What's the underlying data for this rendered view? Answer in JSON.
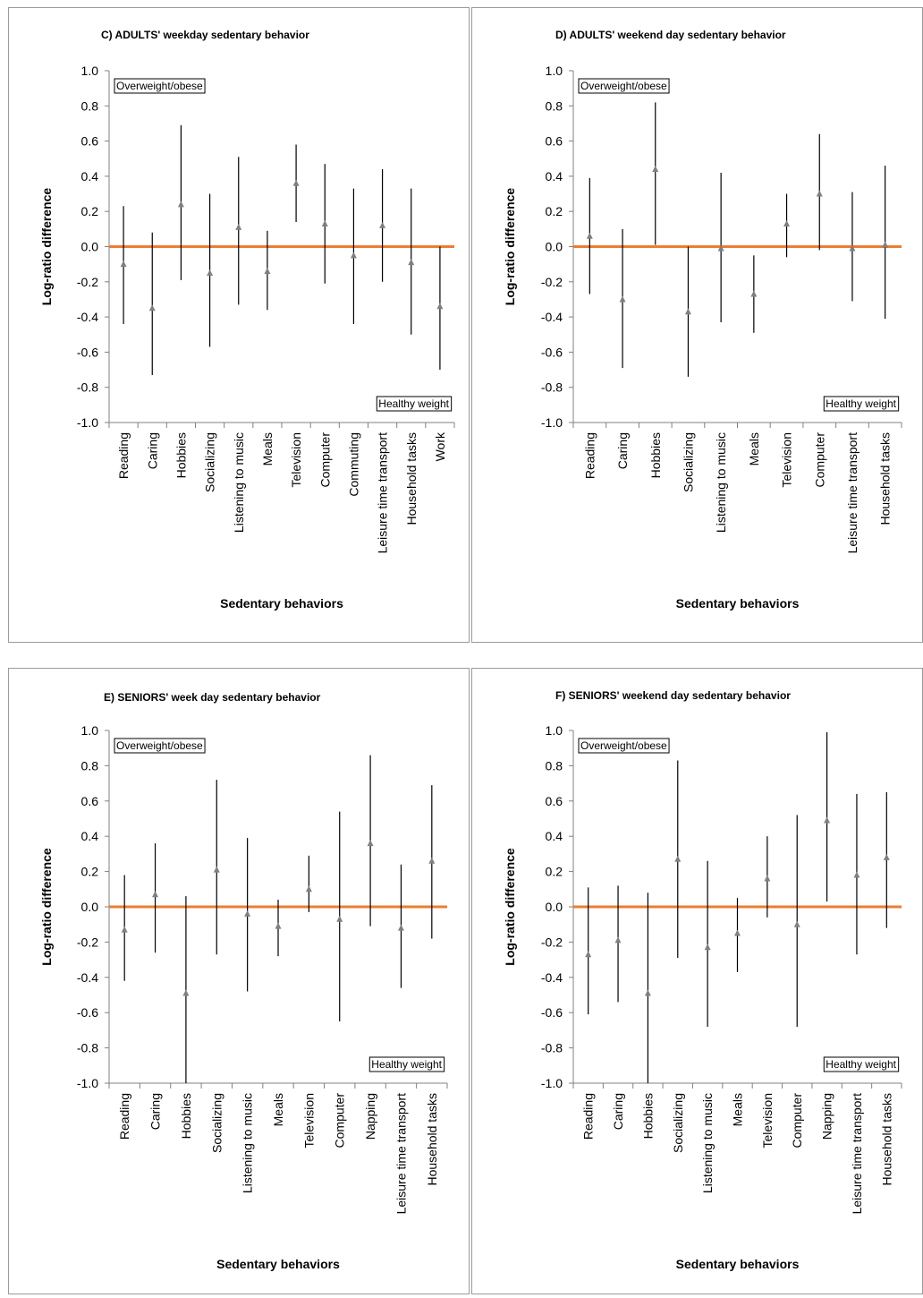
{
  "colors": {
    "zero_line": "#ED7D31",
    "marker": "#808080",
    "whisker": "#000000",
    "axis": "#808080"
  },
  "chart_data": [
    {
      "type": "errorbar",
      "title": "C) ADULTS' weekday sedentary behavior",
      "xlabel": "Sedentary behaviors",
      "ylabel": "Log-ratio difference",
      "ylim": [
        -1.0,
        1.0
      ],
      "yticks": [
        "1.0",
        "0.8",
        "0.6",
        "0.4",
        "0.2",
        "0.0",
        "-0.2",
        "-0.4",
        "-0.6",
        "-0.8",
        "-1.0"
      ],
      "top_label": "Overweight/obese",
      "bottom_label": "Healthy weight",
      "categories": [
        "Reading",
        "Caring",
        "Hobbies",
        "Socializing",
        "Listening to music",
        "Meals",
        "Television",
        "Computer",
        "Commuting",
        "Leisure time transport",
        "Household tasks",
        "Work"
      ],
      "values": [
        -0.1,
        -0.35,
        0.24,
        -0.15,
        0.11,
        -0.14,
        0.36,
        0.13,
        -0.05,
        0.12,
        -0.09,
        -0.34
      ],
      "lower": [
        -0.44,
        -0.73,
        -0.19,
        -0.57,
        -0.33,
        -0.36,
        0.14,
        -0.21,
        -0.44,
        -0.2,
        -0.5,
        -0.7
      ],
      "upper": [
        0.23,
        0.08,
        0.69,
        0.3,
        0.51,
        0.09,
        0.58,
        0.47,
        0.33,
        0.44,
        0.33,
        0.0
      ]
    },
    {
      "type": "errorbar",
      "title": "D) ADULTS' weekend day sedentary behavior",
      "xlabel": "Sedentary behaviors",
      "ylabel": "Log-ratio difference",
      "ylim": [
        -1.0,
        1.0
      ],
      "yticks": [
        "1.0",
        "0.8",
        "0.6",
        "0.4",
        "0.2",
        "0.0",
        "-0.2",
        "-0.4",
        "-0.6",
        "-0.8",
        "-1.0"
      ],
      "top_label": "Overweight/obese",
      "bottom_label": "Healthy weight",
      "categories": [
        "Reading",
        "Caring",
        "Hobbies",
        "Socializing",
        "Listening to music",
        "Meals",
        "Television",
        "Computer",
        "Leisure time transport",
        "Household tasks"
      ],
      "values": [
        0.06,
        -0.3,
        0.44,
        -0.37,
        -0.01,
        -0.27,
        0.13,
        0.3,
        -0.01,
        0.01
      ],
      "lower": [
        -0.27,
        -0.69,
        0.01,
        -0.74,
        -0.43,
        -0.49,
        -0.06,
        -0.02,
        -0.31,
        -0.41
      ],
      "upper": [
        0.39,
        0.1,
        0.82,
        0.0,
        0.42,
        -0.05,
        0.3,
        0.64,
        0.31,
        0.46
      ]
    },
    {
      "type": "errorbar",
      "title": "E) SENIORS' week day sedentary behavior",
      "xlabel": "Sedentary behaviors",
      "ylabel": "Log-ratio difference",
      "ylim": [
        -1.0,
        1.0
      ],
      "yticks": [
        "1.0",
        "0.8",
        "0.6",
        "0.4",
        "0.2",
        "0.0",
        "-0.2",
        "-0.4",
        "-0.6",
        "-0.8",
        "-1.0"
      ],
      "top_label": "Overweight/obese",
      "bottom_label": "Healthy weight",
      "categories": [
        "Reading",
        "Caring",
        "Hobbies",
        "Socializing",
        "Listening to music",
        "Meals",
        "Television",
        "Computer",
        "Napping",
        "Leisure time transport",
        "Household tasks"
      ],
      "values": [
        -0.13,
        0.07,
        -0.49,
        0.21,
        -0.04,
        -0.11,
        0.1,
        -0.07,
        0.36,
        -0.12,
        0.26
      ],
      "lower": [
        -0.42,
        -0.26,
        -1.0,
        -0.27,
        -0.48,
        -0.28,
        -0.03,
        -0.65,
        -0.11,
        -0.46,
        -0.18
      ],
      "upper": [
        0.18,
        0.36,
        0.06,
        0.72,
        0.39,
        0.04,
        0.29,
        0.54,
        0.86,
        0.24,
        0.69
      ]
    },
    {
      "type": "errorbar",
      "title": "F) SENIORS' weekend day sedentary behavior",
      "xlabel": "Sedentary behaviors",
      "ylabel": "Log-ratio difference",
      "ylim": [
        -1.0,
        1.0
      ],
      "yticks": [
        "1.0",
        "0.8",
        "0.6",
        "0.4",
        "0.2",
        "0.0",
        "-0.2",
        "-0.4",
        "-0.6",
        "-0.8",
        "-1.0"
      ],
      "top_label": "Overweight/obese",
      "bottom_label": "Healthy weight",
      "categories": [
        "Reading",
        "Caring",
        "Hobbies",
        "Socializing",
        "Listening to music",
        "Meals",
        "Television",
        "Computer",
        "Napping",
        "Leisure time transport",
        "Household tasks"
      ],
      "values": [
        -0.27,
        -0.19,
        -0.49,
        0.27,
        -0.23,
        -0.15,
        0.16,
        -0.1,
        0.49,
        0.18,
        0.28
      ],
      "lower": [
        -0.61,
        -0.54,
        -1.0,
        -0.29,
        -0.68,
        -0.37,
        -0.06,
        -0.68,
        0.03,
        -0.27,
        -0.12
      ],
      "upper": [
        0.11,
        0.12,
        0.08,
        0.83,
        0.26,
        0.05,
        0.4,
        0.52,
        0.99,
        0.64,
        0.65
      ]
    }
  ]
}
